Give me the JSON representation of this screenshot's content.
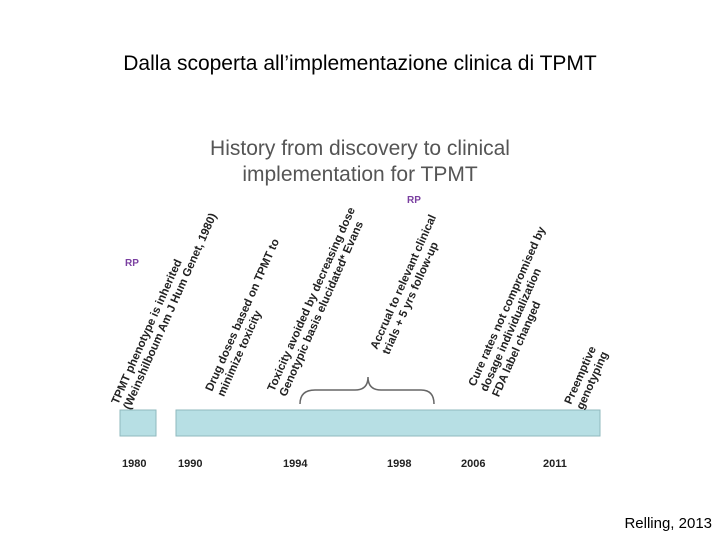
{
  "slide": {
    "title": "Dalla scoperta all’implementazione clinica di TPMT",
    "credit": "Relling, 2013"
  },
  "figure": {
    "title_line1": "History from discovery to clinical",
    "title_line2": "implementation for TPMT",
    "colors": {
      "bar": "#b7dfe4",
      "bar_border": "#8fb8be",
      "text": "#222222",
      "accent": "#7a3fa0",
      "title": "#555555"
    },
    "rp_label": "RP",
    "events": [
      {
        "year": "1980",
        "lines": [
          "TPMT phenotype is inherited",
          "(Weinshilboum Am J Hum Genet, 1980)"
        ]
      },
      {
        "year": "1990",
        "lines": [
          "Drug doses based on TPMT to",
          "minimize toxicity"
        ]
      },
      {
        "year": "1994",
        "lines": [
          "Toxicity avoided by decreasing dose",
          "Genotypic basis elucidated* Evans"
        ]
      },
      {
        "year": "1998",
        "lines": [
          "Accrual to relevant clinical",
          "trials + 5 yrs follow-up"
        ]
      },
      {
        "year": "2006",
        "lines": [
          "Cure rates not compromised by",
          "dosage individualization",
          "FDA label changed"
        ]
      },
      {
        "year": "2011",
        "lines": [
          "Preemptive",
          "genotyping"
        ]
      }
    ]
  }
}
